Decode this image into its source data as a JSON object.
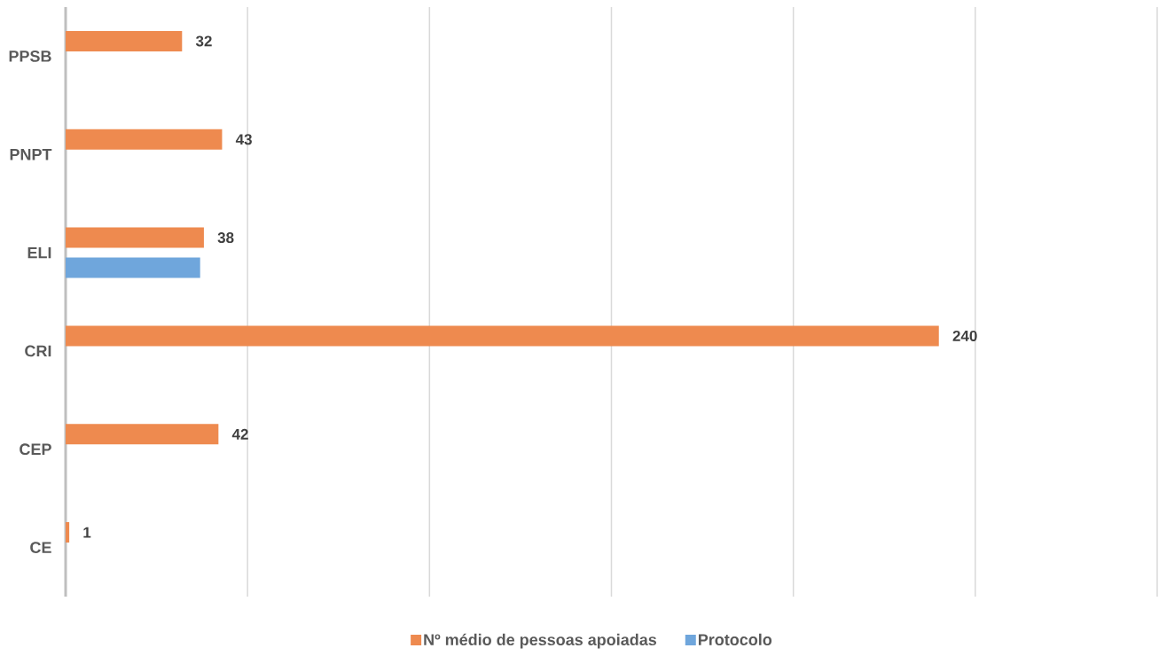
{
  "chart_data": {
    "type": "bar",
    "orientation": "horizontal",
    "categories": [
      "PPSB",
      "PNPT",
      "ELI",
      "CRI",
      "CEP",
      "CE"
    ],
    "series": [
      {
        "name": "Nº médio de pessoas apoiadas",
        "color": "#ee8a4f",
        "values": [
          32,
          43,
          38,
          240,
          42,
          1
        ],
        "value_labels": [
          "32",
          "43",
          "38",
          "240",
          "42",
          "1"
        ]
      },
      {
        "name": "Protocolo",
        "color": "#6fa6dc",
        "values": [
          null,
          null,
          37,
          null,
          null,
          null
        ]
      }
    ],
    "xlim": [
      0,
      300
    ],
    "xticks": [
      {
        "value": 0,
        "label": null
      },
      {
        "value": 50,
        "label": null
      },
      {
        "value": 100,
        "label": null
      },
      {
        "value": 150,
        "label": null
      },
      {
        "value": 200,
        "label": null
      },
      {
        "value": 250,
        "label": null
      },
      {
        "value": 300,
        "label": null
      }
    ],
    "grid": "x",
    "legend": "bottom",
    "tick_labels": "y"
  }
}
